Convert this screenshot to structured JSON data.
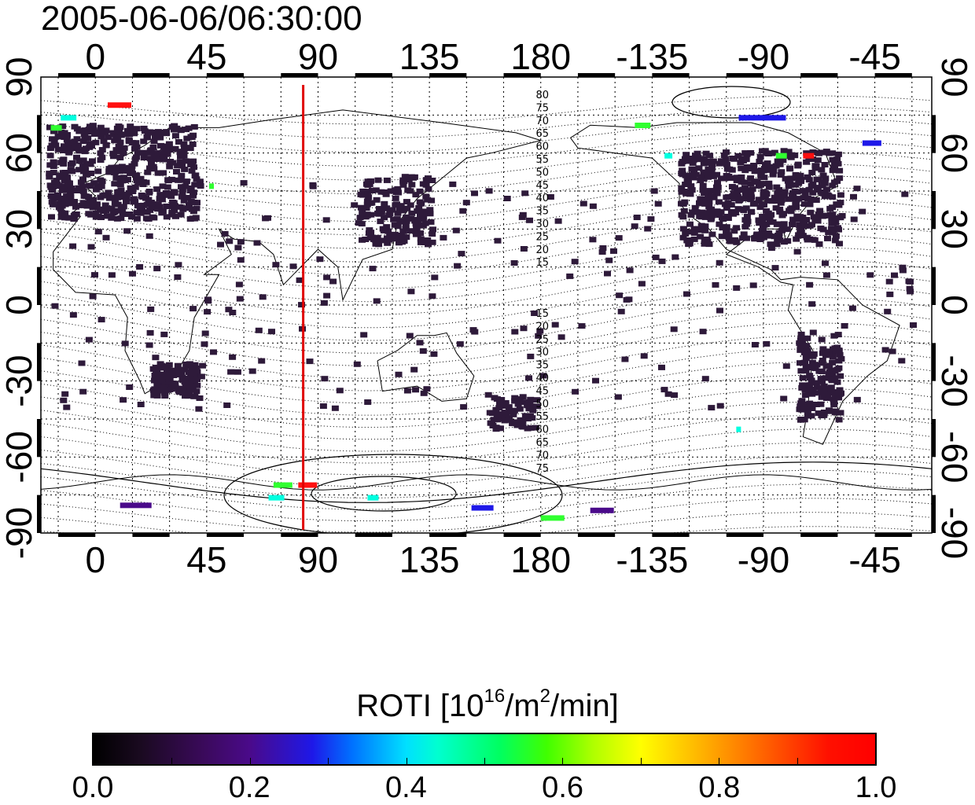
{
  "title": "2005-06-06/06:30:00",
  "map": {
    "lon_ticks_labels": [
      "0",
      "45",
      "90",
      "135",
      "180",
      "-135",
      "-90",
      "-45"
    ],
    "lat_ticks_labels": [
      "90",
      "60",
      "30",
      "0",
      "-30",
      "-60",
      "-90"
    ],
    "lon_ticks": [
      0,
      45,
      90,
      135,
      180,
      225,
      270,
      315
    ],
    "lat_ticks": [
      90,
      60,
      30,
      0,
      -30,
      -60,
      -90
    ],
    "lon_range": [
      -22,
      338
    ],
    "lat_range": [
      -90,
      90
    ],
    "meridian_marker_lon": 84,
    "meridian_marker_color": "#e00000",
    "north_contour_labels": [
      "80",
      "75",
      "70",
      "65",
      "60",
      "55",
      "50",
      "45",
      "40",
      "35",
      "30",
      "25",
      "20",
      "15"
    ],
    "south_contour_labels": [
      "15",
      "20",
      "25",
      "30",
      "35",
      "40",
      "45",
      "50",
      "55",
      "60",
      "65",
      "70",
      "75"
    ]
  },
  "colorbar": {
    "title_main": "ROTI  [10",
    "title_sup1": "16",
    "title_mid": "/m",
    "title_sup2": "2",
    "title_end": "/min]",
    "labels": [
      "0.0",
      "0.2",
      "0.4",
      "0.6",
      "0.8",
      "1.0"
    ],
    "range": [
      0.0,
      1.0
    ]
  },
  "colors": {
    "low_activity": "#2e1a3a",
    "purple": "#4a0a8a",
    "blue": "#1e18e8",
    "cyan": "#00ffe0",
    "green": "#30ff30",
    "red": "#ff1010"
  }
}
